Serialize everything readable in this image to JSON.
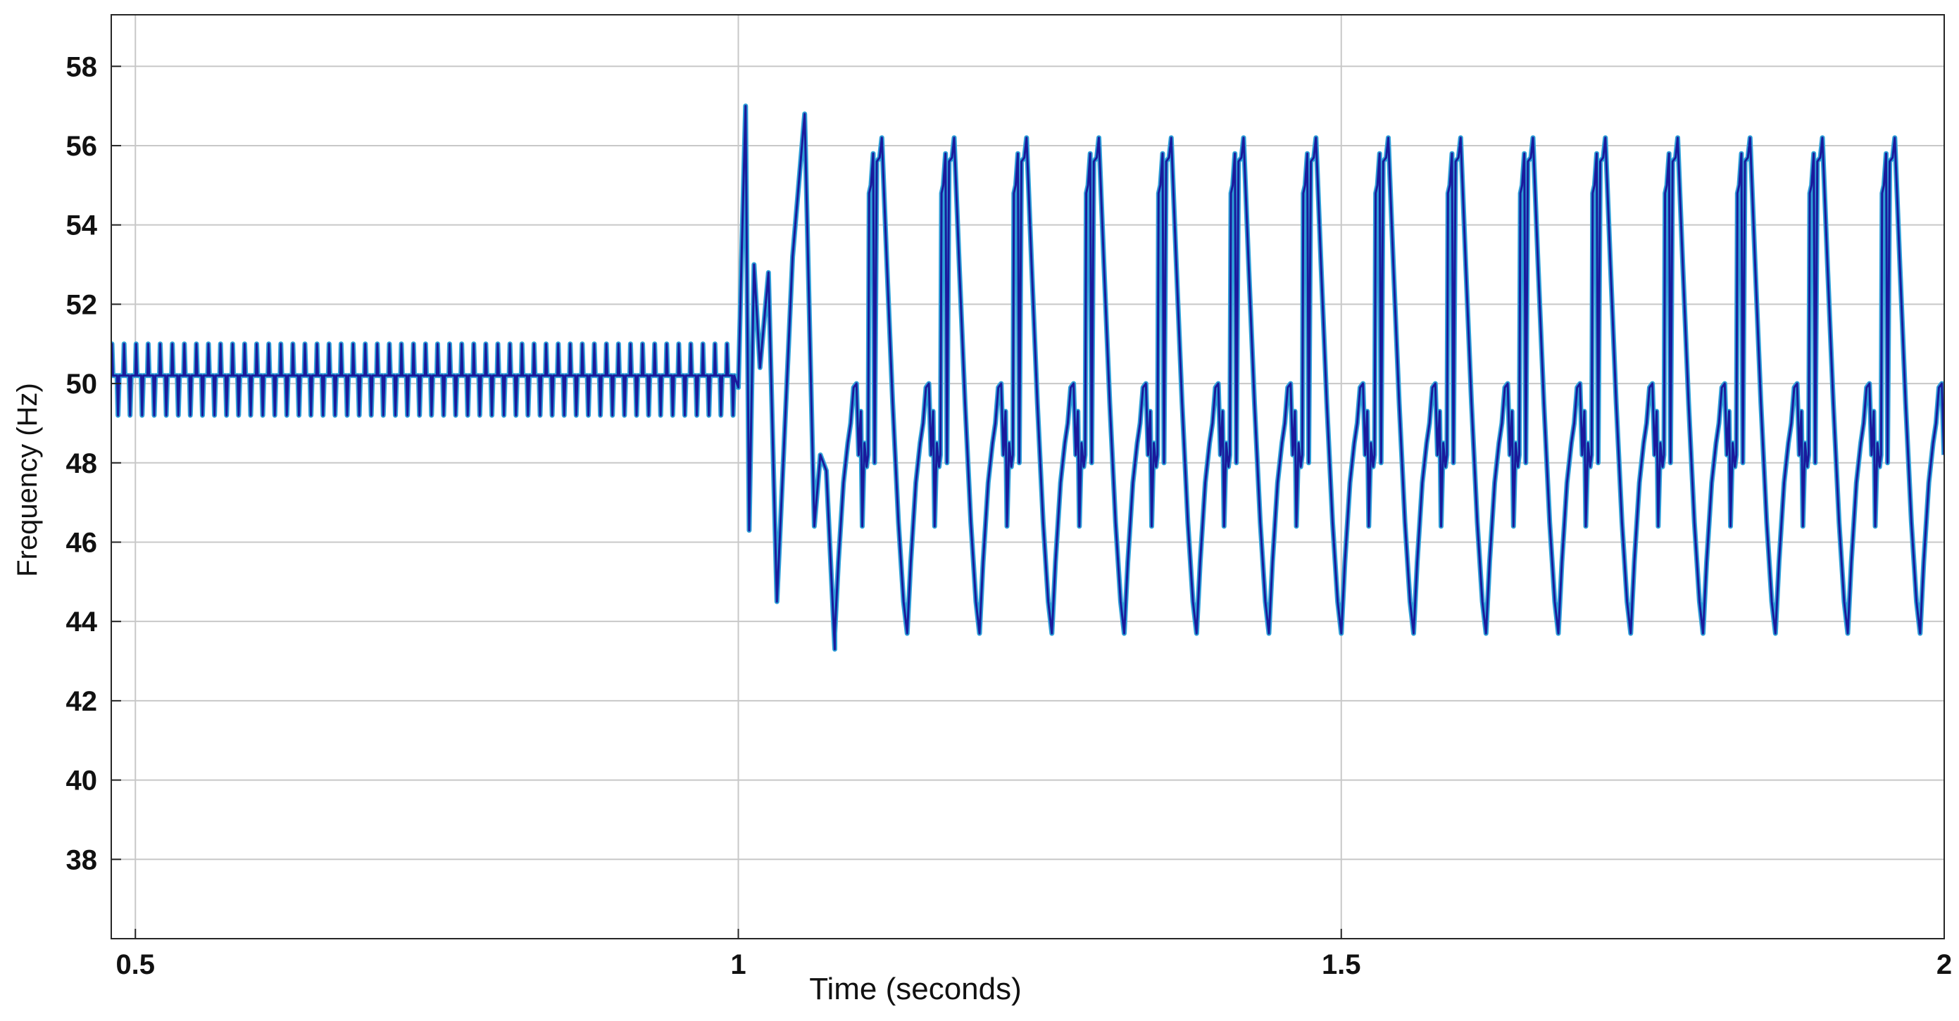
{
  "chart_data": {
    "type": "line",
    "title": "",
    "xlabel": "Time (seconds)",
    "ylabel": "Frequency (Hz)",
    "xlim": [
      0.48,
      2.0
    ],
    "ylim": [
      36,
      59.3
    ],
    "x_ticks": [
      0.5,
      1,
      1.5,
      2
    ],
    "x_tick_labels": [
      "0.5",
      "1",
      "1.5",
      "2"
    ],
    "y_ticks": [
      38,
      40,
      42,
      44,
      46,
      48,
      50,
      52,
      54,
      56,
      58
    ],
    "y_tick_labels": [
      "38",
      "40",
      "42",
      "44",
      "46",
      "48",
      "50",
      "52",
      "54",
      "56",
      "58"
    ],
    "grid": true,
    "legend": "none",
    "colors": {
      "series_dark": "#1a1a9c",
      "series_light": "#2f9fd8",
      "grid": "#c8c8c8",
      "axes": "#262626"
    },
    "series": [
      {
        "phase": "steady state",
        "t_range": [
          0.48,
          1.0
        ],
        "oscillation_period_s": 0.01,
        "upper_peak_hz": 51.0,
        "plateau_hz": 50.2,
        "lower_peak_hz": 49.2
      },
      {
        "phase": "transient",
        "points": [
          [
            1.0,
            49.9
          ],
          [
            1.003,
            53.5
          ],
          [
            1.006,
            57.0
          ],
          [
            1.009,
            46.3
          ],
          [
            1.013,
            53.0
          ],
          [
            1.018,
            50.4
          ],
          [
            1.025,
            52.8
          ],
          [
            1.032,
            44.5
          ],
          [
            1.045,
            53.2
          ],
          [
            1.055,
            56.8
          ],
          [
            1.063,
            46.4
          ],
          [
            1.068,
            48.2
          ],
          [
            1.073,
            47.8
          ],
          [
            1.08,
            43.3
          ]
        ]
      },
      {
        "phase": "sustained oscillation",
        "t_range": [
          1.08,
          2.0
        ],
        "oscillation_period_s": 0.06,
        "max_hz": 56.2,
        "min_hz": 43.7
      }
    ]
  }
}
